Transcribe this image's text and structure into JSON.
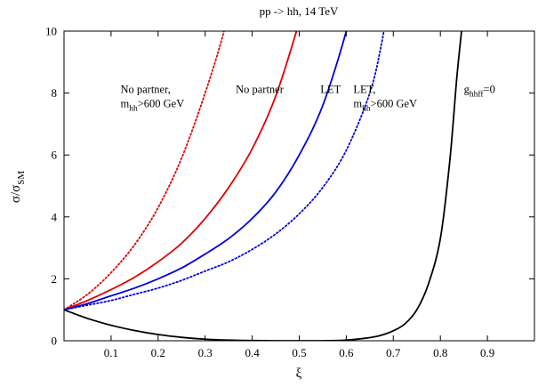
{
  "chart_data": {
    "type": "line",
    "title": "pp -> hh, 14 TeV",
    "xlabel": "ξ",
    "ylabel_main": "σ/σ",
    "ylabel_sub": "SM",
    "xlim": [
      0,
      1
    ],
    "ylim": [
      0,
      10
    ],
    "xticks": [
      0.1,
      0.2,
      0.3,
      0.4,
      0.5,
      0.6,
      0.7,
      0.8,
      0.9
    ],
    "xtick_labels": [
      "0.1",
      "0.2",
      "0.3",
      "0.4",
      "0.5",
      "0.6",
      "0.7",
      "0.8",
      "0.9"
    ],
    "yticks": [
      0,
      2,
      4,
      6,
      8,
      10
    ],
    "ytick_labels": [
      "0",
      "2",
      "4",
      "6",
      "8",
      "10"
    ],
    "grid": false,
    "series": [
      {
        "name": "No partner, m_hh>600 GeV",
        "color": "#e00000",
        "dash": "dotted",
        "x": [
          0,
          0.05,
          0.1,
          0.15,
          0.2,
          0.25,
          0.3,
          0.34,
          0.37
        ],
        "y": [
          1.0,
          1.5,
          2.2,
          3.1,
          4.3,
          5.9,
          8.0,
          10.0,
          12.0
        ]
      },
      {
        "name": "No partner",
        "color": "#e00000",
        "dash": "solid",
        "x": [
          0,
          0.05,
          0.1,
          0.15,
          0.2,
          0.25,
          0.3,
          0.35,
          0.4,
          0.45,
          0.5,
          0.53
        ],
        "y": [
          1.0,
          1.3,
          1.65,
          2.05,
          2.55,
          3.15,
          3.95,
          4.95,
          6.2,
          7.9,
          10.3,
          12.0
        ]
      },
      {
        "name": "LET",
        "color": "#0000e0",
        "dash": "solid",
        "x": [
          0,
          0.05,
          0.1,
          0.15,
          0.2,
          0.25,
          0.3,
          0.35,
          0.4,
          0.45,
          0.5,
          0.55,
          0.6,
          0.62
        ],
        "y": [
          1.0,
          1.2,
          1.45,
          1.7,
          2.0,
          2.35,
          2.8,
          3.3,
          3.95,
          4.8,
          6.0,
          7.6,
          10.0,
          11.5
        ]
      },
      {
        "name": "LET, m_hh>600 GeV",
        "color": "#0000e0",
        "dash": "dotted",
        "x": [
          0,
          0.05,
          0.1,
          0.15,
          0.2,
          0.25,
          0.3,
          0.35,
          0.4,
          0.45,
          0.5,
          0.55,
          0.6,
          0.65,
          0.675,
          0.69
        ],
        "y": [
          1.0,
          1.15,
          1.3,
          1.5,
          1.7,
          1.95,
          2.25,
          2.55,
          2.95,
          3.45,
          4.1,
          4.95,
          6.15,
          8.0,
          9.6,
          11.0
        ]
      },
      {
        "name": "g_hhff=0",
        "color": "#000000",
        "dash": "solid",
        "x": [
          0,
          0.05,
          0.1,
          0.15,
          0.2,
          0.25,
          0.3,
          0.35,
          0.4,
          0.45,
          0.5,
          0.55,
          0.6,
          0.65,
          0.675,
          0.7,
          0.725,
          0.75,
          0.775,
          0.8,
          0.82,
          0.835,
          0.845,
          0.855
        ],
        "y": [
          1.0,
          0.72,
          0.5,
          0.33,
          0.2,
          0.11,
          0.05,
          0.02,
          0.005,
          0.0,
          0.0,
          0.0,
          0.02,
          0.1,
          0.18,
          0.32,
          0.55,
          1.0,
          1.85,
          3.3,
          5.8,
          8.5,
          10.0,
          11.5
        ]
      }
    ],
    "annotations": [
      {
        "lines": [
          {
            "main": "No partner,"
          },
          {
            "main": "m",
            "sub": "hh",
            "tail": ">600 GeV"
          }
        ],
        "x": 0.12,
        "y": 8.0
      },
      {
        "lines": [
          {
            "main": "No partner"
          }
        ],
        "x": 0.365,
        "y": 8.0
      },
      {
        "lines": [
          {
            "main": "LET"
          }
        ],
        "x": 0.545,
        "y": 8.0
      },
      {
        "lines": [
          {
            "main": "LET,"
          },
          {
            "main": "m",
            "sub": "hh",
            "tail": ">600 GeV"
          }
        ],
        "x": 0.615,
        "y": 8.0
      },
      {
        "lines": [
          {
            "main": "g",
            "sub": "hhff",
            "tail": "=0"
          }
        ],
        "x": 0.85,
        "y": 8.0
      }
    ]
  }
}
